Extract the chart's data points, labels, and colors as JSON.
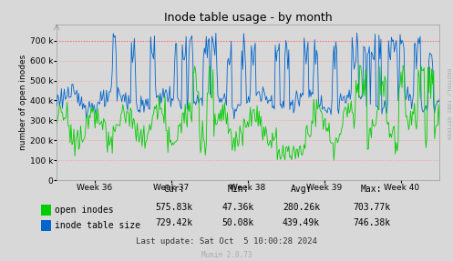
{
  "title": "Inode table usage - by month",
  "ylabel": "number of open inodes",
  "xlabel_ticks": [
    "Week 36",
    "Week 37",
    "Week 38",
    "Week 39",
    "Week 40"
  ],
  "yticks": [
    0,
    100000,
    200000,
    300000,
    400000,
    500000,
    600000,
    700000
  ],
  "ytick_labels": [
    "0",
    "100 k",
    "200 k",
    "300 k",
    "400 k",
    "500 k",
    "600 k",
    "700 k"
  ],
  "ylim": [
    0,
    780000
  ],
  "bg_color": "#d8d8d8",
  "plot_bg_color": "#d8d8d8",
  "grid_color": "#ff9999",
  "red_line_y": 700000,
  "green_color": "#00cc00",
  "blue_color": "#0066cc",
  "legend": [
    {
      "label": "open inodes",
      "color": "#00cc00"
    },
    {
      "label": "inode table size",
      "color": "#0066cc"
    }
  ],
  "stats": {
    "cur_green": "575.83k",
    "min_green": "47.36k",
    "avg_green": "280.26k",
    "max_green": "703.77k",
    "cur_blue": "729.42k",
    "min_blue": "50.08k",
    "avg_blue": "439.49k",
    "max_blue": "746.38k"
  },
  "footer": "Last update: Sat Oct  5 10:00:28 2024",
  "munin_version": "Munin 2.0.73",
  "rrdtool_label": "RRDTOOL/ TOBI OETIKER",
  "n_points": 400
}
